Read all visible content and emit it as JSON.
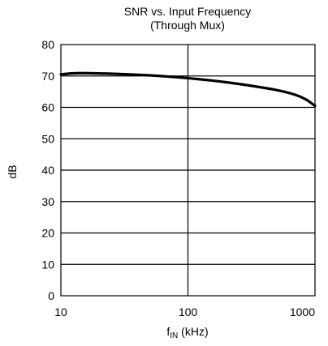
{
  "chart_data": {
    "type": "line",
    "title": "SNR vs. Input Frequency",
    "subtitle": "(Through Mux)",
    "xlabel_main": "f",
    "xlabel_sub": "IN",
    "xlabel_unit": "(kHz)",
    "ylabel": "dB",
    "x_scale": "log",
    "xlim": [
      10,
      1000
    ],
    "ylim": [
      0,
      80
    ],
    "x_ticks": [
      10,
      100,
      1000
    ],
    "x_tick_labels": [
      "10",
      "100",
      "1000"
    ],
    "y_ticks": [
      0,
      10,
      20,
      30,
      40,
      50,
      60,
      70,
      80
    ],
    "y_tick_labels": [
      "0",
      "10",
      "20",
      "30",
      "40",
      "50",
      "60",
      "70",
      "80"
    ],
    "grid": true,
    "line_color": "#000000",
    "series": [
      {
        "x": [
          10,
          12,
          15,
          20,
          30,
          50,
          70,
          100,
          150,
          200,
          300,
          500,
          700,
          850,
          1000
        ],
        "y": [
          70.5,
          70.8,
          70.9,
          70.8,
          70.6,
          70.2,
          69.8,
          69.3,
          68.6,
          68.0,
          67.0,
          65.5,
          64.0,
          62.5,
          60.5
        ]
      }
    ]
  }
}
